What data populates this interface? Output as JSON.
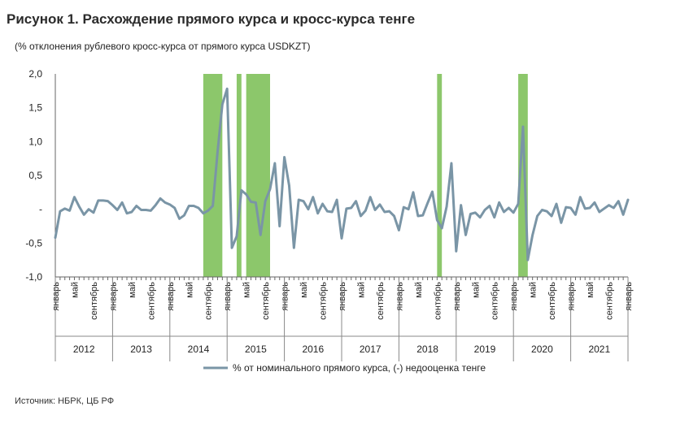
{
  "chart_data": {
    "type": "line",
    "title": "Рисунок 1. Расхождение прямого курса и кросс-курса тенге",
    "subtitle": "(% отклонения рублевого кросс-курса от прямого курса USDKZT)",
    "source": "Источник: НБРК, ЦБ РФ",
    "ylim": [
      -1,
      2
    ],
    "yticks": [
      "2,0",
      "1,5",
      "1,0",
      "0,5",
      "-",
      "-0,5",
      "-1,0"
    ],
    "ytick_values": [
      2,
      1.5,
      1,
      0.5,
      0,
      -0.5,
      -1
    ],
    "x_start": "2012-01",
    "x_end": "2022-01",
    "month_labels": [
      "январь",
      "май",
      "сентябрь"
    ],
    "month_label_positions": [
      0,
      4,
      8
    ],
    "years": [
      "2012",
      "2013",
      "2014",
      "2015",
      "2016",
      "2017",
      "2018",
      "2019",
      "2020",
      "2021"
    ],
    "last_label": "январь",
    "series": [
      {
        "name": "% от номинального прямого курса, (-) недооценка тенге",
        "color": "#7a95a6",
        "values": [
          -0.42,
          -0.03,
          0.01,
          -0.02,
          0.18,
          0.04,
          -0.08,
          0.0,
          -0.05,
          0.13,
          0.13,
          0.12,
          0.06,
          -0.01,
          0.1,
          -0.06,
          -0.04,
          0.05,
          -0.01,
          -0.01,
          -0.02,
          0.06,
          0.16,
          0.1,
          0.07,
          0.02,
          -0.14,
          -0.09,
          0.05,
          0.05,
          0.02,
          -0.06,
          -0.02,
          0.05,
          0.85,
          1.55,
          1.78,
          -0.57,
          -0.4,
          0.28,
          0.22,
          0.11,
          0.1,
          -0.38,
          0.12,
          0.3,
          0.68,
          -0.25,
          0.77,
          0.35,
          -0.57,
          0.14,
          0.12,
          0.0,
          0.18,
          -0.06,
          0.08,
          -0.03,
          -0.04,
          0.14,
          -0.43,
          0.01,
          0.02,
          0.12,
          -0.1,
          -0.02,
          0.18,
          -0.01,
          0.07,
          -0.04,
          -0.03,
          -0.1,
          -0.31,
          0.03,
          0.0,
          0.25,
          -0.1,
          -0.09,
          0.09,
          0.26,
          -0.16,
          -0.28,
          0.04,
          0.68,
          -0.62,
          0.06,
          -0.38,
          -0.07,
          -0.05,
          -0.12,
          -0.01,
          0.05,
          -0.12,
          0.1,
          -0.04,
          0.02,
          -0.05,
          0.08,
          1.22,
          -0.75,
          -0.38,
          -0.1,
          -0.01,
          -0.03,
          -0.1,
          0.08,
          -0.2,
          0.03,
          0.02,
          -0.08,
          0.18,
          0.01,
          0.02,
          0.1,
          -0.04,
          0.01,
          0.06,
          0.02,
          0.12,
          -0.08,
          0.14
        ]
      }
    ],
    "shaded_regions": [
      {
        "start": "2014-08",
        "end": "2014-12"
      },
      {
        "start": "2015-03",
        "end": "2015-04"
      },
      {
        "start": "2015-05",
        "end": "2015-10"
      },
      {
        "start": "2018-09",
        "end": "2018-10"
      },
      {
        "start": "2020-02",
        "end": "2020-04"
      }
    ],
    "shade_color": "#8cc76b",
    "grid": false,
    "legend_position": "bottom"
  }
}
